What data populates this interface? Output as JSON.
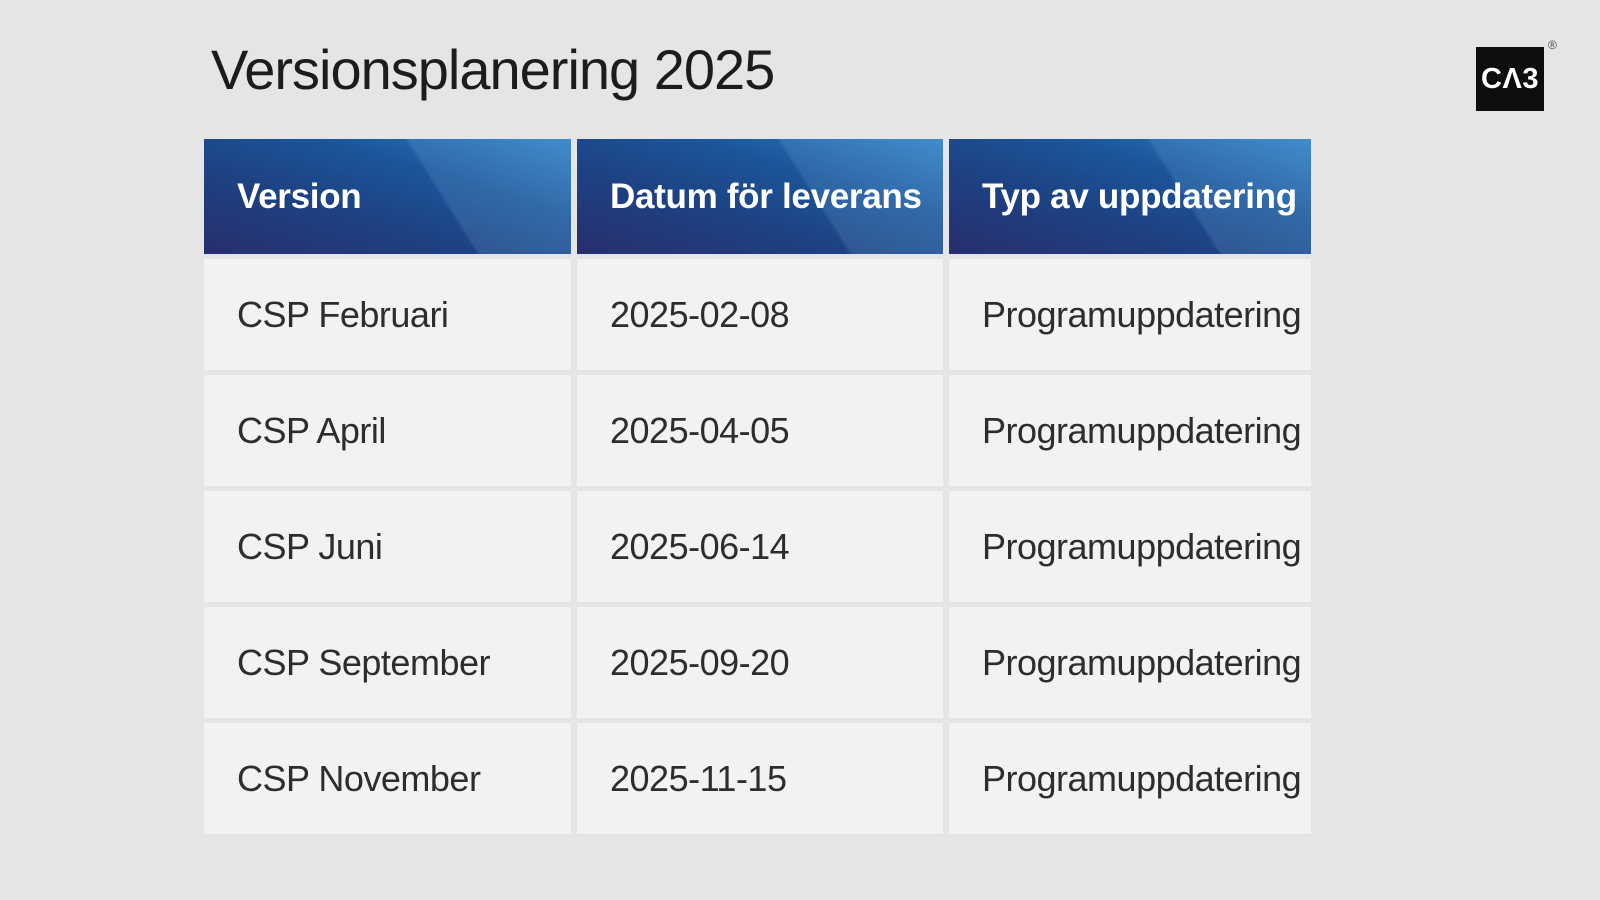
{
  "page": {
    "title": "Versionsplanering 2025"
  },
  "logo": {
    "text": "CΛ3",
    "registered_mark": "®",
    "bg_color": "#0e0e0e",
    "fg_color": "#ffffff"
  },
  "colors": {
    "page_bg": "#e5e5e6",
    "cell_bg": "#f2f2f3",
    "header_gradient_dark": "#282e6d",
    "header_gradient_mid": "#1c5599",
    "header_gradient_light": "#2a7dc2",
    "header_text": "#ffffff",
    "body_text": "#2d2d2e",
    "title_text": "#1c1c1c"
  },
  "table": {
    "columns": [
      "Version",
      "Datum för leverans",
      "Typ av uppdatering"
    ],
    "rows": [
      {
        "version": "CSP Februari",
        "date": "2025-02-08",
        "type": "Programuppdatering"
      },
      {
        "version": "CSP April",
        "date": "2025-04-05",
        "type": "Programuppdatering"
      },
      {
        "version": "CSP Juni",
        "date": "2025-06-14",
        "type": "Programuppdatering"
      },
      {
        "version": "CSP September",
        "date": "2025-09-20",
        "type": "Programuppdatering"
      },
      {
        "version": "CSP November",
        "date": "2025-11-15",
        "type": "Programuppdatering"
      }
    ]
  }
}
